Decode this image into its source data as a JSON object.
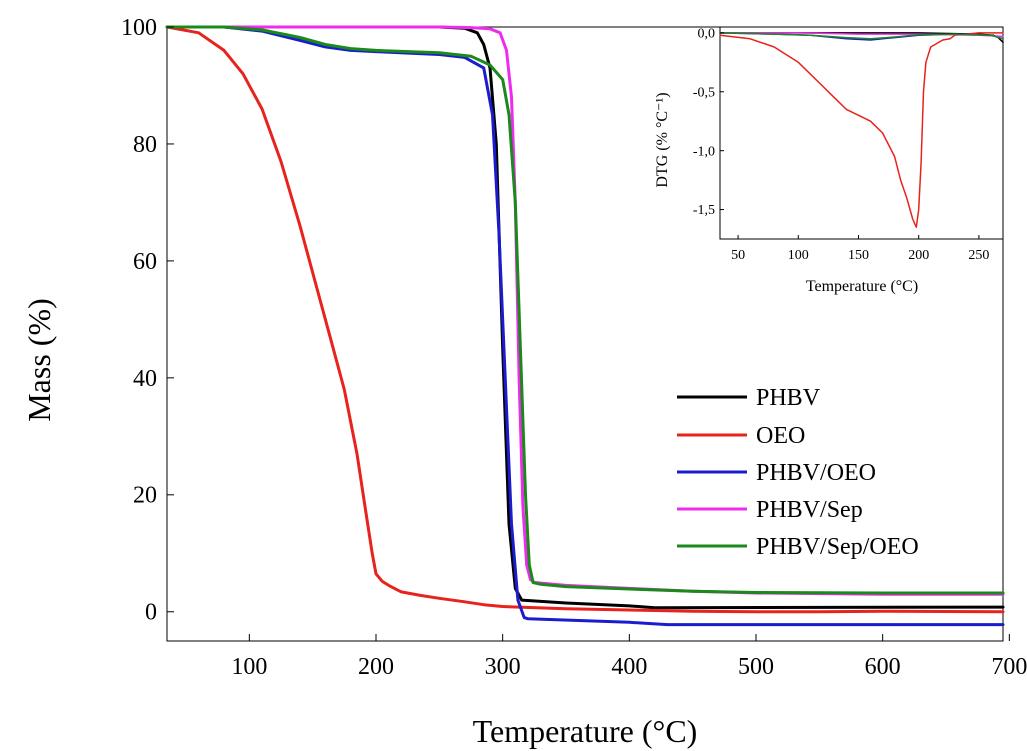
{
  "chart_data": [
    {
      "type": "line",
      "title": "",
      "xlabel": "Temperature (°C)",
      "ylabel": "Mass (%)",
      "xlim": [
        35,
        695
      ],
      "ylim": [
        -5,
        100
      ],
      "xticks": [
        100,
        200,
        300,
        400,
        500,
        600,
        700
      ],
      "yticks": [
        0,
        20,
        40,
        60,
        80,
        100
      ],
      "grid": false,
      "legend_position": "center-right",
      "series": [
        {
          "name": "PHBV",
          "color": "#000000",
          "points": [
            [
              35,
              100
            ],
            [
              100,
              100
            ],
            [
              200,
              100
            ],
            [
              250,
              100
            ],
            [
              270,
              99.8
            ],
            [
              280,
              99
            ],
            [
              285,
              97
            ],
            [
              290,
              93
            ],
            [
              295,
              80
            ],
            [
              300,
              45
            ],
            [
              305,
              15
            ],
            [
              310,
              4
            ],
            [
              315,
              2
            ],
            [
              350,
              1.5
            ],
            [
              400,
              1
            ],
            [
              420,
              0.7
            ],
            [
              695,
              0.8
            ]
          ]
        },
        {
          "name": "OEO",
          "color": "#e8221c",
          "points": [
            [
              35,
              100
            ],
            [
              60,
              99
            ],
            [
              80,
              96
            ],
            [
              95,
              92
            ],
            [
              110,
              86
            ],
            [
              125,
              77
            ],
            [
              140,
              66
            ],
            [
              155,
              54
            ],
            [
              165,
              46
            ],
            [
              175,
              38
            ],
            [
              185,
              27
            ],
            [
              192,
              17
            ],
            [
              197,
              10
            ],
            [
              200,
              6.5
            ],
            [
              205,
              5.2
            ],
            [
              210,
              4.5
            ],
            [
              220,
              3.4
            ],
            [
              235,
              2.8
            ],
            [
              250,
              2.3
            ],
            [
              270,
              1.7
            ],
            [
              285,
              1.2
            ],
            [
              300,
              0.9
            ],
            [
              350,
              0.5
            ],
            [
              400,
              0.3
            ],
            [
              450,
              0.1
            ],
            [
              500,
              0
            ],
            [
              550,
              0
            ],
            [
              600,
              0.1
            ],
            [
              695,
              0
            ]
          ]
        },
        {
          "name": "PHBV/OEO",
          "color": "#1c1ccf",
          "points": [
            [
              35,
              100
            ],
            [
              80,
              100
            ],
            [
              110,
              99.3
            ],
            [
              140,
              97.7
            ],
            [
              160,
              96.6
            ],
            [
              180,
              96
            ],
            [
              200,
              95.8
            ],
            [
              250,
              95.3
            ],
            [
              270,
              94.8
            ],
            [
              285,
              93
            ],
            [
              292,
              85
            ],
            [
              297,
              65
            ],
            [
              302,
              40
            ],
            [
              307,
              15
            ],
            [
              312,
              2
            ],
            [
              317,
              -1
            ],
            [
              320,
              -1.2
            ],
            [
              400,
              -1.8
            ],
            [
              430,
              -2.2
            ],
            [
              500,
              -2.2
            ],
            [
              600,
              -2.2
            ],
            [
              695,
              -2.2
            ]
          ]
        },
        {
          "name": "PHBV/Sep",
          "color": "#ee2bee",
          "points": [
            [
              35,
              100
            ],
            [
              100,
              100
            ],
            [
              200,
              100
            ],
            [
              250,
              100
            ],
            [
              275,
              99.9
            ],
            [
              290,
              99.7
            ],
            [
              298,
              99
            ],
            [
              303,
              96
            ],
            [
              307,
              88
            ],
            [
              310,
              70
            ],
            [
              313,
              40
            ],
            [
              316,
              18
            ],
            [
              319,
              8
            ],
            [
              322,
              5.5
            ],
            [
              325,
              5
            ],
            [
              350,
              4.5
            ],
            [
              400,
              4
            ],
            [
              450,
              3.5
            ],
            [
              500,
              3.2
            ],
            [
              600,
              3
            ],
            [
              695,
              3
            ]
          ]
        },
        {
          "name": "PHBV/Sep/OEO",
          "color": "#1a8a1a",
          "points": [
            [
              35,
              100
            ],
            [
              80,
              100
            ],
            [
              110,
              99.5
            ],
            [
              140,
              98.2
            ],
            [
              160,
              97
            ],
            [
              180,
              96.3
            ],
            [
              200,
              96
            ],
            [
              250,
              95.6
            ],
            [
              275,
              95
            ],
            [
              290,
              93.5
            ],
            [
              300,
              91
            ],
            [
              305,
              85
            ],
            [
              310,
              70
            ],
            [
              314,
              45
            ],
            [
              318,
              20
            ],
            [
              321,
              8
            ],
            [
              324,
              5
            ],
            [
              330,
              4.7
            ],
            [
              350,
              4.3
            ],
            [
              400,
              3.9
            ],
            [
              450,
              3.5
            ],
            [
              500,
              3.3
            ],
            [
              600,
              3.2
            ],
            [
              695,
              3.2
            ]
          ]
        }
      ]
    },
    {
      "type": "line",
      "title": "",
      "xlabel": "Temperature (°C)",
      "ylabel": "DTG (% °C⁻¹)",
      "xlim": [
        35,
        270
      ],
      "ylim": [
        -1.75,
        0.05
      ],
      "xticks": [
        50,
        100,
        150,
        200,
        250
      ],
      "xtick_labels": [
        "50",
        "100",
        "150",
        "200",
        "250"
      ],
      "yticks": [
        0.0,
        -0.5,
        -1.0,
        -1.5
      ],
      "ytick_labels": [
        "0,0",
        "-0,5",
        "-1,0",
        "-1,5"
      ],
      "grid": false,
      "series": [
        {
          "name": "PHBV",
          "color": "#000000",
          "points": [
            [
              35,
              0
            ],
            [
              100,
              0
            ],
            [
              150,
              0
            ],
            [
              200,
              0
            ],
            [
              250,
              -0.01
            ],
            [
              262,
              -0.02
            ],
            [
              266,
              -0.04
            ],
            [
              270,
              -0.08
            ]
          ]
        },
        {
          "name": "OEO",
          "color": "#e8221c",
          "points": [
            [
              35,
              -0.02
            ],
            [
              60,
              -0.05
            ],
            [
              80,
              -0.12
            ],
            [
              100,
              -0.25
            ],
            [
              120,
              -0.45
            ],
            [
              130,
              -0.55
            ],
            [
              140,
              -0.65
            ],
            [
              150,
              -0.7
            ],
            [
              160,
              -0.75
            ],
            [
              170,
              -0.85
            ],
            [
              180,
              -1.05
            ],
            [
              185,
              -1.25
            ],
            [
              190,
              -1.4
            ],
            [
              195,
              -1.58
            ],
            [
              198,
              -1.65
            ],
            [
              200,
              -1.5
            ],
            [
              202,
              -1.1
            ],
            [
              204,
              -0.5
            ],
            [
              206,
              -0.25
            ],
            [
              210,
              -0.12
            ],
            [
              220,
              -0.06
            ],
            [
              226,
              -0.05
            ],
            [
              230,
              -0.02
            ],
            [
              250,
              0
            ],
            [
              270,
              0
            ]
          ]
        },
        {
          "name": "PHBV/OEO",
          "color": "#1c1ccf",
          "points": [
            [
              35,
              0
            ],
            [
              80,
              -0.01
            ],
            [
              110,
              -0.02
            ],
            [
              140,
              -0.05
            ],
            [
              160,
              -0.06
            ],
            [
              180,
              -0.04
            ],
            [
              200,
              -0.02
            ],
            [
              230,
              -0.01
            ],
            [
              260,
              -0.02
            ],
            [
              270,
              -0.05
            ]
          ]
        },
        {
          "name": "PHBV/Sep",
          "color": "#ee2bee",
          "points": [
            [
              35,
              0
            ],
            [
              100,
              0
            ],
            [
              150,
              -0.01
            ],
            [
              200,
              -0.01
            ],
            [
              250,
              -0.02
            ],
            [
              270,
              -0.03
            ]
          ]
        },
        {
          "name": "PHBV/Sep/OEO",
          "color": "#1a8a1a",
          "points": [
            [
              35,
              0
            ],
            [
              80,
              -0.01
            ],
            [
              110,
              -0.02
            ],
            [
              140,
              -0.04
            ],
            [
              160,
              -0.05
            ],
            [
              180,
              -0.035
            ],
            [
              200,
              -0.015
            ],
            [
              230,
              -0.01
            ],
            [
              260,
              -0.02
            ],
            [
              270,
              -0.05
            ]
          ]
        }
      ]
    }
  ]
}
